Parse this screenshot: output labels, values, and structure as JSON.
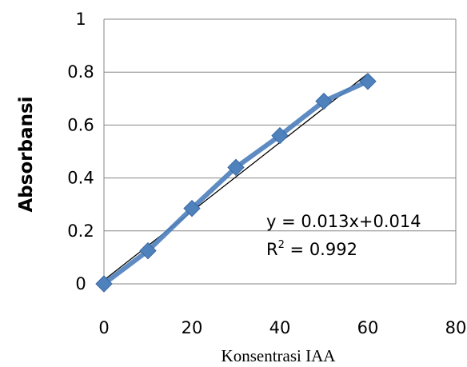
{
  "chart_data": {
    "type": "scatter",
    "xlabel": "Konsentrasi IAA",
    "ylabel": "Absorbansi",
    "xlim": [
      0,
      80
    ],
    "ylim": [
      0,
      1
    ],
    "x_ticks": [
      "0",
      "20",
      "40",
      "60",
      "80"
    ],
    "y_ticks": [
      "0",
      "0.2",
      "0.4",
      "0.6",
      "0.8",
      "1"
    ],
    "grid": "horizontal",
    "series": [
      {
        "x": [
          0,
          10,
          20,
          30,
          40,
          50,
          60
        ],
        "y": [
          0,
          0.125,
          0.285,
          0.44,
          0.56,
          0.69,
          0.765
        ],
        "color": "#4f81bd"
      }
    ],
    "trendline": {
      "slope": 0.013,
      "intercept": 0.014,
      "x_range": [
        0,
        60
      ],
      "color": "#000000"
    },
    "annotation": {
      "equation": "y = 0.013x+0.014",
      "r2_prefix": "R",
      "r2_sup": "2",
      "r2_value": " = 0.992"
    }
  }
}
